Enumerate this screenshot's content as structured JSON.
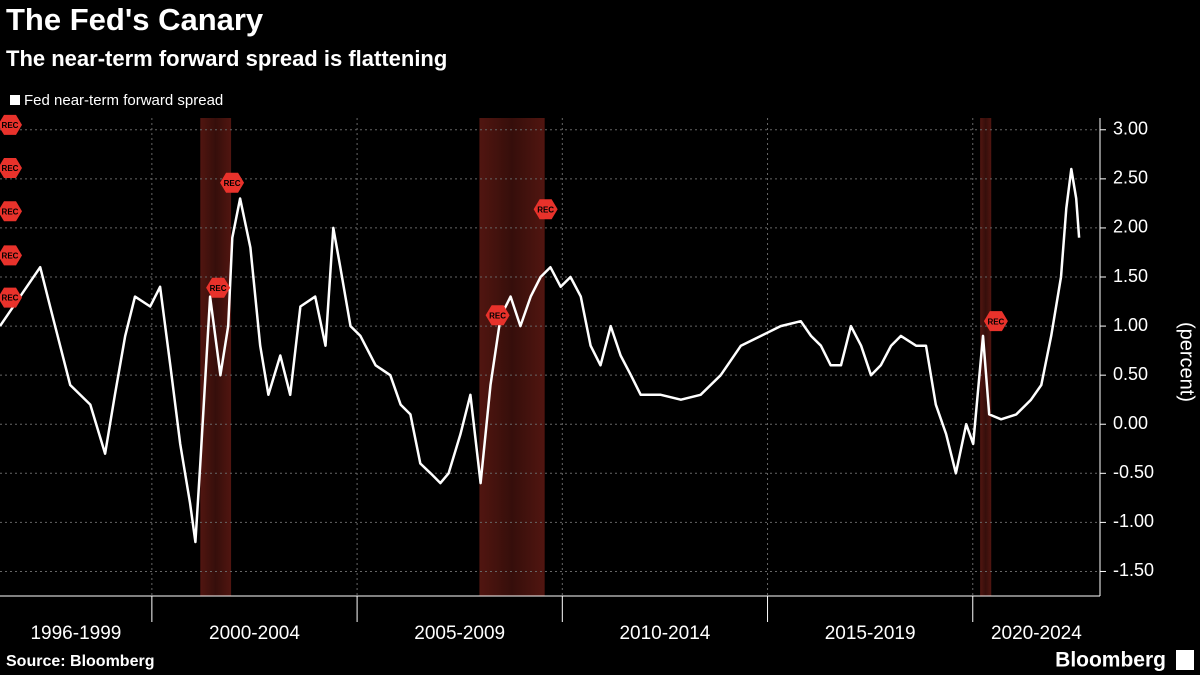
{
  "chart_data": {
    "type": "line",
    "title": "The Fed's Canary",
    "subtitle": "The near-term forward spread is flattening",
    "y_label": "(percent)",
    "source": "Source: Bloomberg",
    "brand": "Bloomberg",
    "x": [
      1996.3,
      1996.79,
      1997.28,
      1997.52,
      1998.01,
      1998.5,
      1998.86,
      1999.1,
      1999.35,
      1999.59,
      1999.96,
      2000.2,
      2000.45,
      2000.69,
      2000.93,
      2001.06,
      2001.18,
      2001.42,
      2001.67,
      2001.86,
      2001.96,
      2002.15,
      2002.4,
      2002.64,
      2002.84,
      2003.13,
      2003.37,
      2003.62,
      2003.98,
      2004.23,
      2004.42,
      2004.59,
      2004.84,
      2005.08,
      2005.45,
      2005.81,
      2006.06,
      2006.3,
      2006.54,
      2006.79,
      2007.03,
      2007.23,
      2007.52,
      2007.76,
      2008.01,
      2008.25,
      2008.5,
      2008.74,
      2008.98,
      2009.23,
      2009.47,
      2009.71,
      2009.96,
      2010.2,
      2010.45,
      2010.69,
      2010.93,
      2011.18,
      2011.42,
      2011.67,
      2011.91,
      2012.4,
      2012.89,
      2013.37,
      2013.86,
      2014.35,
      2014.84,
      2015.32,
      2015.81,
      2016.06,
      2016.3,
      2016.54,
      2016.79,
      2017.03,
      2017.28,
      2017.52,
      2017.76,
      2018.01,
      2018.25,
      2018.62,
      2018.86,
      2019.1,
      2019.35,
      2019.59,
      2019.84,
      2020.01,
      2020.25,
      2020.4,
      2020.69,
      2021.06,
      2021.42,
      2021.67,
      2021.91,
      2022.15,
      2022.28,
      2022.4,
      2022.52,
      2022.59
    ],
    "series": [
      {
        "name": "Fed near-term forward spread",
        "color": "#ffffff",
        "values": [
          1.0,
          1.3,
          1.6,
          1.2,
          0.4,
          0.2,
          -0.3,
          0.3,
          0.9,
          1.3,
          1.2,
          1.4,
          0.6,
          -0.2,
          -0.8,
          -1.2,
          -0.4,
          1.3,
          0.5,
          1.0,
          1.9,
          2.3,
          1.8,
          0.8,
          0.3,
          0.7,
          0.3,
          1.2,
          1.3,
          0.8,
          2.0,
          1.6,
          1.0,
          0.9,
          0.6,
          0.5,
          0.2,
          0.1,
          -0.4,
          -0.5,
          -0.6,
          -0.5,
          -0.1,
          0.3,
          -0.6,
          0.4,
          1.1,
          1.3,
          1.0,
          1.3,
          1.5,
          1.6,
          1.4,
          1.5,
          1.3,
          0.8,
          0.6,
          1.0,
          0.7,
          0.5,
          0.3,
          0.3,
          0.25,
          0.3,
          0.5,
          0.8,
          0.9,
          1.0,
          1.05,
          0.9,
          0.8,
          0.6,
          0.6,
          1.0,
          0.8,
          0.5,
          0.6,
          0.8,
          0.9,
          0.8,
          0.8,
          0.2,
          -0.1,
          -0.5,
          0.0,
          -0.2,
          0.9,
          0.1,
          0.05,
          0.1,
          0.25,
          0.4,
          0.9,
          1.5,
          2.2,
          2.6,
          2.3,
          1.9
        ]
      }
    ],
    "recessions": [
      [
        2001.18,
        2001.93
      ],
      [
        2007.98,
        2009.57
      ],
      [
        2020.18,
        2020.45
      ]
    ],
    "recession_color": "#5a1812",
    "annotations": [
      {
        "label": "REC",
        "x": 1996.3,
        "y": 3.05
      },
      {
        "label": "REC",
        "x": 1996.3,
        "y": 2.61
      },
      {
        "label": "REC",
        "x": 1996.3,
        "y": 2.17
      },
      {
        "label": "REC",
        "x": 1996.3,
        "y": 1.72
      },
      {
        "label": "REC",
        "x": 1996.3,
        "y": 1.29
      },
      {
        "label": "REC",
        "x": 2001.71,
        "y": 2.46
      },
      {
        "label": "REC",
        "x": 2001.37,
        "y": 1.39
      },
      {
        "label": "REC",
        "x": 2008.18,
        "y": 1.11
      },
      {
        "label": "REC",
        "x": 2009.35,
        "y": 2.19
      },
      {
        "label": "REC",
        "x": 2020.32,
        "y": 1.05
      }
    ],
    "xlim": [
      1996.3,
      2023.1
    ],
    "xticks": [
      {
        "value": 1996,
        "label": "1996-1999"
      },
      {
        "value": 2000,
        "label": "2000-2004"
      },
      {
        "value": 2005,
        "label": "2005-2009"
      },
      {
        "value": 2010,
        "label": "2010-2014"
      },
      {
        "value": 2015,
        "label": "2015-2019"
      },
      {
        "value": 2020,
        "label": "2020-2024"
      }
    ],
    "ylim": [
      -1.75,
      3.12
    ],
    "yticks": [
      {
        "value": 3,
        "label": "3.00"
      },
      {
        "value": 2.5,
        "label": "2.50"
      },
      {
        "value": 2,
        "label": "2.00"
      },
      {
        "value": 1.5,
        "label": "1.50"
      },
      {
        "value": 1,
        "label": "1.00"
      },
      {
        "value": 0.5,
        "label": "0.50"
      },
      {
        "value": 0,
        "label": "0.00"
      },
      {
        "value": -0.5,
        "label": "-0.50"
      },
      {
        "value": -1,
        "label": "-1.00"
      },
      {
        "value": -1.5,
        "label": "-1.50"
      }
    ],
    "grid": true
  }
}
